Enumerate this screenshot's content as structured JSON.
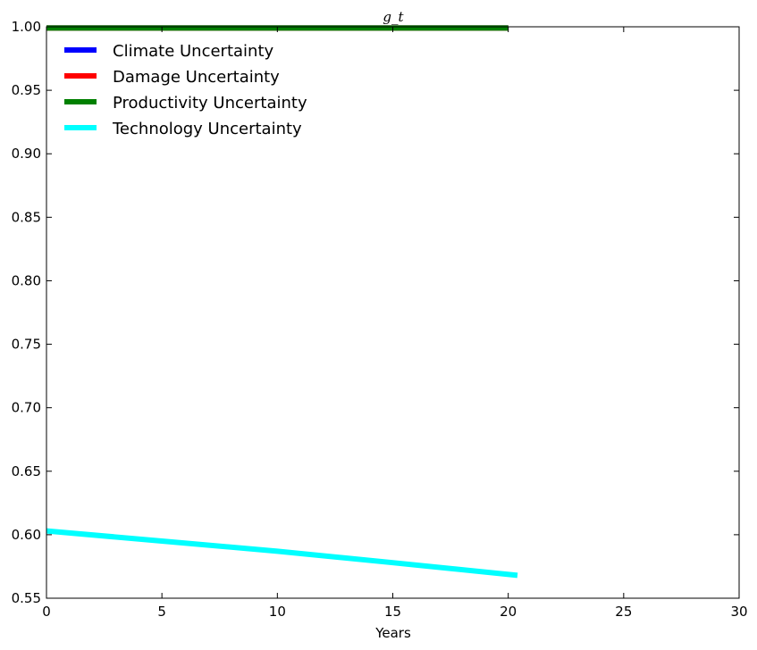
{
  "chart_data": {
    "type": "line",
    "title": "g_t",
    "xlabel": "Years",
    "ylabel": "",
    "xlim": [
      0,
      30
    ],
    "ylim": [
      0.55,
      1.0
    ],
    "x_ticks": [
      0,
      5,
      10,
      15,
      20,
      25,
      30
    ],
    "y_ticks": [
      0.55,
      0.6,
      0.65,
      0.7,
      0.75,
      0.8,
      0.85,
      0.9,
      0.95,
      1.0
    ],
    "y_tick_labels": [
      "0.55",
      "0.60",
      "0.65",
      "0.70",
      "0.75",
      "0.80",
      "0.85",
      "0.90",
      "0.95",
      "1.00"
    ],
    "grid": false,
    "legend_position": "top-left",
    "series": [
      {
        "name": "Climate Uncertainty",
        "color": "#0000ff",
        "x": [
          0,
          20
        ],
        "y": [
          0.999,
          0.999
        ]
      },
      {
        "name": "Damage Uncertainty",
        "color": "#ff0000",
        "x": [
          0,
          20
        ],
        "y": [
          0.999,
          0.999
        ]
      },
      {
        "name": "Productivity Uncertainty",
        "color": "#008000",
        "x": [
          0,
          20
        ],
        "y": [
          0.999,
          0.999
        ]
      },
      {
        "name": "Technology Uncertainty",
        "color": "#00ffff",
        "x": [
          0,
          5,
          10,
          15,
          20.4
        ],
        "y": [
          0.603,
          0.595,
          0.587,
          0.578,
          0.568
        ]
      }
    ]
  }
}
